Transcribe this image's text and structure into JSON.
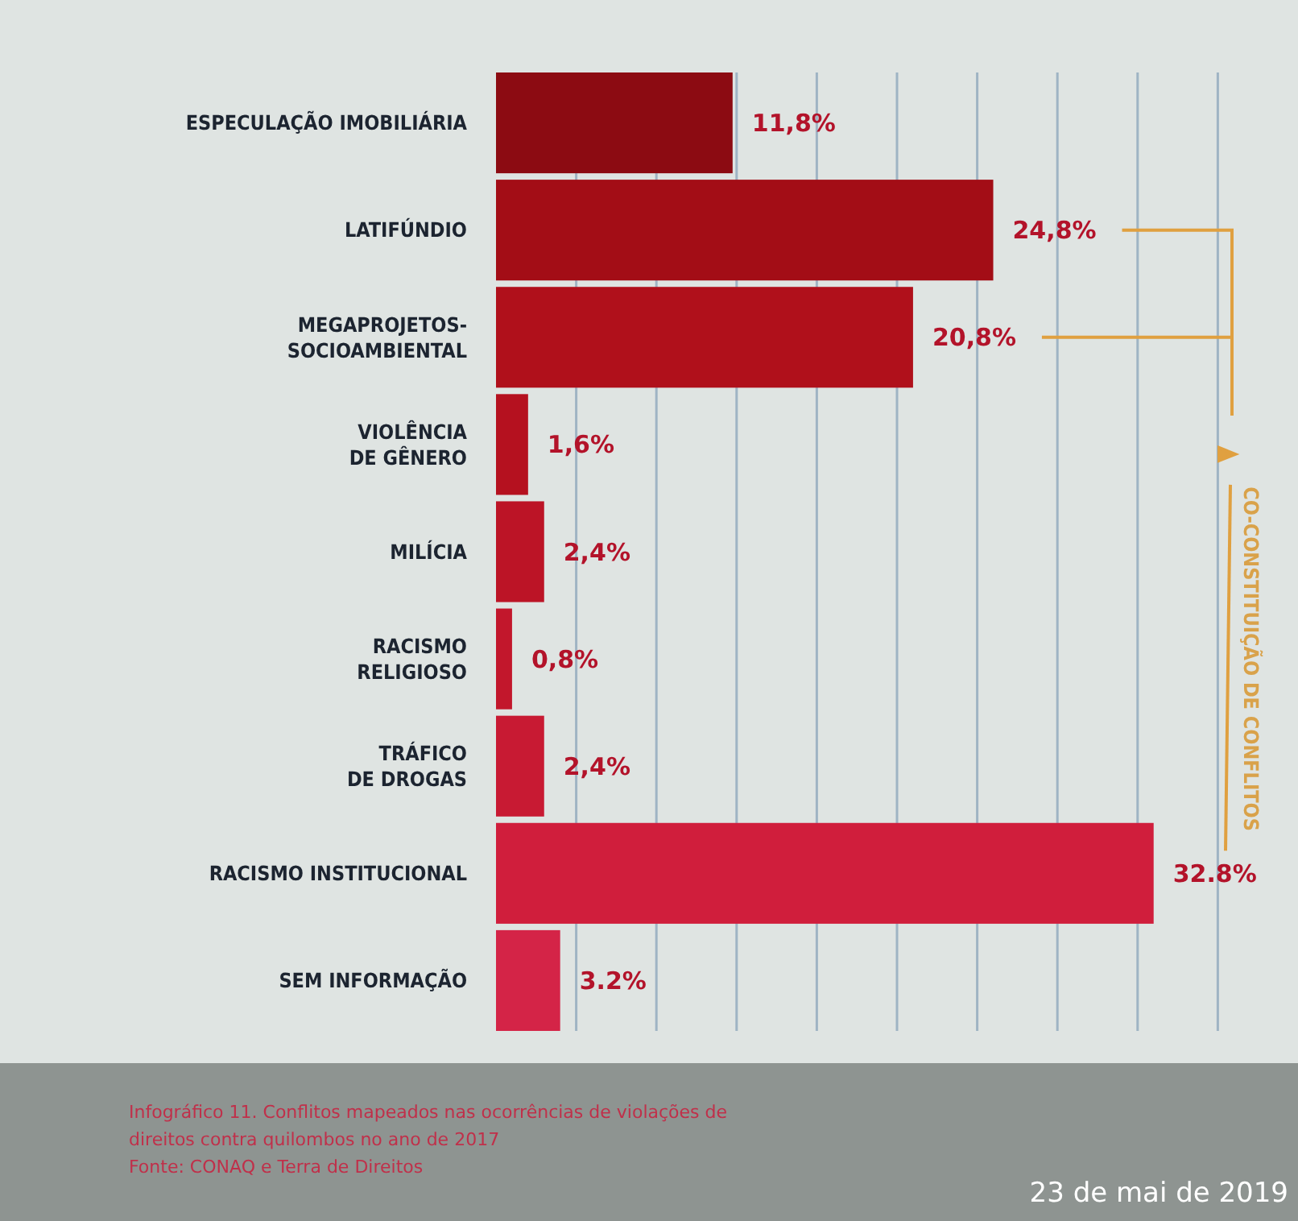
{
  "chart_data": {
    "type": "bar",
    "orientation": "horizontal",
    "categories": [
      "ESPECULAÇÃO IMOBILIÁRIA",
      "LATIFÚNDIO",
      "MEGAPROJETOS-\nSOCIOAMBIENTAL",
      "VIOLÊNCIA\nDE GÊNERO",
      "MILÍCIA",
      "RACISMO\nRELIGIOSO",
      "TRÁFICO\nDE DROGAS",
      "RACISMO INSTITUCIONAL",
      "SEM INFORMAÇÃO"
    ],
    "values": [
      11.8,
      24.8,
      20.8,
      1.6,
      2.4,
      0.8,
      2.4,
      32.8,
      3.2
    ],
    "value_labels": [
      "11,8%",
      "24,8%",
      "20,8%",
      "1,6%",
      "2,4%",
      "0,8%",
      "2,4%",
      "32.8%",
      "3.2%"
    ],
    "colors": [
      "#8c0b12",
      "#a30d16",
      "#b0101b",
      "#b5111f",
      "#bc1426",
      "#c2172c",
      "#c81a33",
      "#d01e3c",
      "#d42447"
    ],
    "xlim": [
      0,
      40
    ],
    "xticks": [
      {
        "value": 4,
        "label": null
      },
      {
        "value": 8,
        "label": null
      },
      {
        "value": 12,
        "label": null
      },
      {
        "value": 16,
        "label": null
      },
      {
        "value": 20,
        "label": null
      },
      {
        "value": 24,
        "label": null
      },
      {
        "value": 28,
        "label": null
      },
      {
        "value": 32,
        "label": null
      },
      {
        "value": 36,
        "label": null
      }
    ],
    "tick_labels": "y",
    "grid": "x",
    "annotations": [
      "CO-CONSTITUIÇÃO DE CONFLITOS",
      "Infográfico 11. Conflitos mapeados nas ocorrências de violações de\ndireitos contra quilombos no ano de 2017",
      "Fonte: CONAQ e Terra de Direitos",
      "23 de mai de 2019"
    ]
  }
}
